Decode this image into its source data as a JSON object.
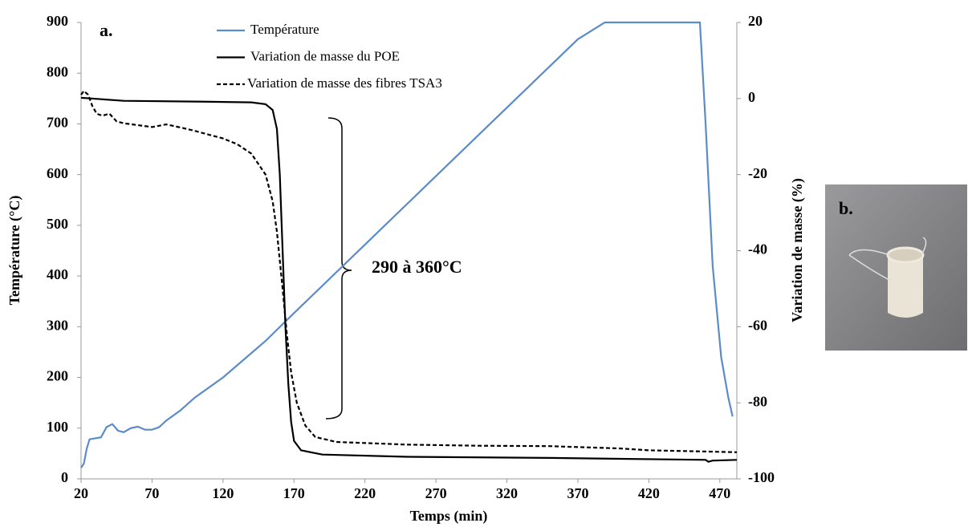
{
  "chart_data": {
    "type": "line",
    "x_label": "Temps (min)",
    "y_label": "Température (°C)",
    "y2_label": "Variation de masse (%)",
    "xlim": [
      20,
      482
    ],
    "xticks": [
      20,
      70,
      120,
      170,
      220,
      270,
      320,
      370,
      420,
      470
    ],
    "ylim": [
      0,
      900
    ],
    "yticks": [
      0,
      100,
      200,
      300,
      400,
      500,
      600,
      700,
      800,
      900
    ],
    "y2lim": [
      -100,
      20
    ],
    "y2ticks": [
      -100,
      -80,
      -60,
      -40,
      -20,
      0,
      20
    ],
    "grid": false,
    "legend": "top",
    "series": [
      {
        "name": "Température",
        "color": "#5b8bc9",
        "line_style": "solid",
        "axis": "y",
        "x": [
          20,
          22,
          24,
          26,
          30,
          34,
          38,
          42,
          46,
          50,
          55,
          60,
          65,
          70,
          75,
          80,
          90,
          100,
          120,
          150,
          170,
          220,
          270,
          320,
          370,
          389,
          420,
          456,
          460,
          465,
          471,
          476,
          479
        ],
        "values": [
          22,
          30,
          60,
          78,
          80,
          82,
          102,
          108,
          95,
          92,
          100,
          103,
          97,
          97,
          102,
          115,
          135,
          160,
          200,
          272,
          327,
          462,
          597,
          732,
          867,
          900,
          900,
          900,
          700,
          420,
          240,
          160,
          123
        ]
      },
      {
        "name": "Variation de masse du POE",
        "color": "#000000",
        "line_style": "solid",
        "axis": "y2",
        "x": [
          20,
          50,
          100,
          140,
          150,
          155,
          158,
          160,
          162,
          164,
          166,
          168,
          170,
          175,
          190,
          250,
          350,
          460,
          462,
          465,
          482
        ],
        "values": [
          0.2,
          -0.6,
          -0.8,
          -1,
          -1.5,
          -3,
          -8,
          -20,
          -40,
          -60,
          -75,
          -85,
          -90,
          -92.5,
          -93.6,
          -94.2,
          -94.5,
          -95,
          -95.5,
          -95.2,
          -95
        ]
      },
      {
        "name": "Variation de masse des fibres TSA3",
        "color": "#000000",
        "line_style": "dashed",
        "axis": "y2",
        "x": [
          20,
          22,
          25,
          28,
          31,
          35,
          40,
          45,
          50,
          60,
          70,
          80,
          90,
          100,
          110,
          120,
          130,
          140,
          150,
          155,
          158,
          162,
          165,
          168,
          172,
          178,
          185,
          200,
          250,
          300,
          350,
          400,
          420,
          460,
          482
        ],
        "values": [
          1,
          2,
          1,
          -2,
          -4,
          -4.5,
          -4,
          -6,
          -6.5,
          -7,
          -7.5,
          -6.8,
          -7.6,
          -8.5,
          -9.5,
          -10.5,
          -12,
          -14.5,
          -20,
          -27,
          -35,
          -50,
          -62,
          -72,
          -80,
          -86,
          -89,
          -90.3,
          -91,
          -91.3,
          -91.4,
          -92,
          -92.5,
          -92.8,
          -93
        ]
      }
    ],
    "annotations": [
      "a.",
      "290 à 360°C",
      "b."
    ]
  }
}
